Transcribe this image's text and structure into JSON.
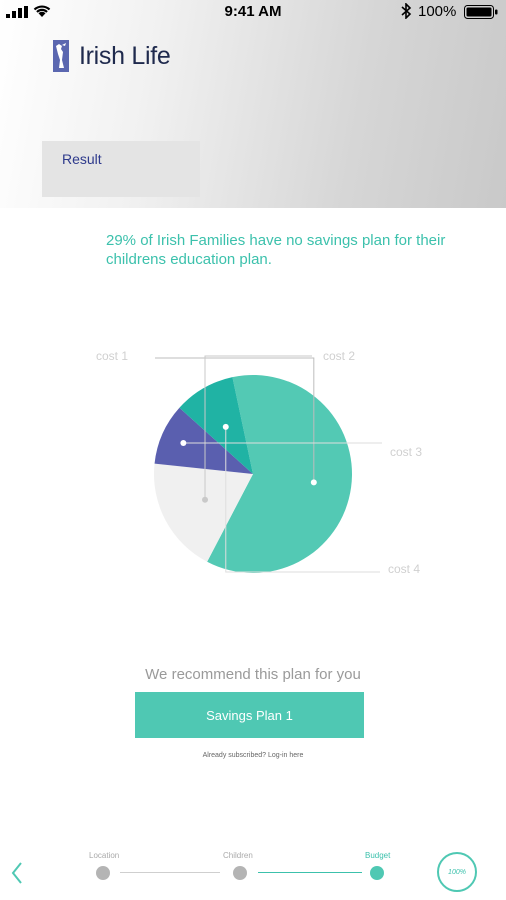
{
  "status_bar": {
    "time": "9:41 AM",
    "battery_percent": "100%",
    "icons": [
      "signal-icon",
      "wifi-icon",
      "bluetooth-icon",
      "battery-icon"
    ]
  },
  "header": {
    "brand": "Irish Life",
    "result_label": "Result"
  },
  "headline": "29% of Irish Families have no savings plan for their childrens education plan.",
  "chart_data": {
    "type": "pie",
    "categories": [
      "cost 1",
      "cost 2",
      "cost 3",
      "cost 4"
    ],
    "values": [
      61,
      19,
      10,
      10
    ],
    "colors": [
      "#53c9b4",
      "#f0f0f0",
      "#5a5faf",
      "#20b3a4"
    ],
    "labels": [
      "cost 1",
      "cost 2",
      "cost 3",
      "cost 4"
    ]
  },
  "recommendation": {
    "text": "We recommend this plan for you",
    "button_label": "Savings Plan 1",
    "login_text": "Already subscribed? Log-in here"
  },
  "stepper": {
    "steps": [
      {
        "label": "Location",
        "active": false
      },
      {
        "label": "Children",
        "active": false
      },
      {
        "label": "Budget",
        "active": true
      }
    ],
    "progress_text": "100%",
    "progress_value": 100
  },
  "colors": {
    "accent": "#4fc8b3",
    "brand_text": "#1f2a4d",
    "result_text": "#2e3a8c"
  }
}
